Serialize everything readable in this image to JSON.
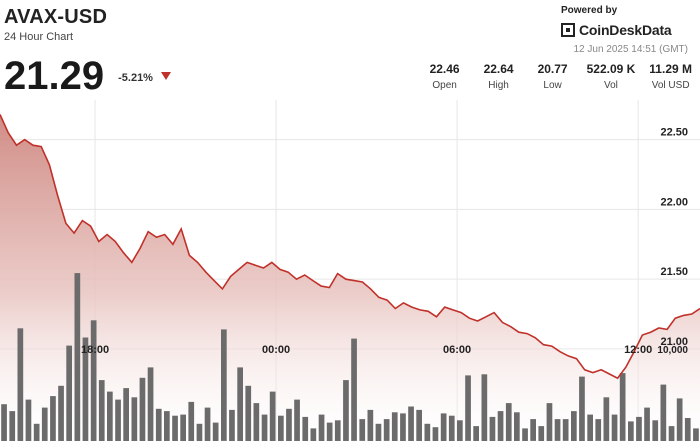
{
  "header": {
    "ticker": "AVAX-USD",
    "subtitle": "24 Hour Chart",
    "price": "21.29",
    "change": "-5.21%"
  },
  "brand": {
    "powered_by": "Powered by",
    "name": "CoinDeskData",
    "timestamp": "12 Jun 2025 14:51 (GMT)"
  },
  "stats": [
    {
      "value": "22.46",
      "label": "Open"
    },
    {
      "value": "22.64",
      "label": "High"
    },
    {
      "value": "20.77",
      "label": "Low"
    },
    {
      "value": "522.09 K",
      "label": "Vol"
    },
    {
      "value": "11.29 M",
      "label": "Vol USD"
    }
  ],
  "chart_data": {
    "type": "area",
    "x_tick_labels": [
      "18:00",
      "00:00",
      "06:00",
      "12:00"
    ],
    "x_tick_hours": [
      3.15,
      9.15,
      15.15,
      21.15
    ],
    "x_range_hours": [
      0,
      23.2
    ],
    "y_tick_labels": [
      "22.50",
      "22.00",
      "21.50",
      "21.00"
    ],
    "y_ticks": [
      22.5,
      22.0,
      21.5,
      21.0
    ],
    "ylim": [
      20.34,
      22.82
    ],
    "volume_tick_label": "10,000",
    "grid": true,
    "colors": {
      "line": "#c0312a",
      "area_top": "#d08a84",
      "volume": "#6b6b6b"
    },
    "price": [
      22.68,
      22.55,
      22.46,
      22.5,
      22.46,
      22.45,
      22.32,
      22.1,
      21.9,
      21.83,
      21.92,
      21.88,
      21.77,
      21.82,
      21.77,
      21.69,
      21.62,
      21.72,
      21.84,
      21.8,
      21.82,
      21.75,
      21.86,
      21.67,
      21.62,
      21.55,
      21.49,
      21.43,
      21.52,
      21.57,
      21.62,
      21.6,
      21.58,
      21.62,
      21.57,
      21.55,
      21.5,
      21.53,
      21.49,
      21.45,
      21.44,
      21.54,
      21.5,
      21.49,
      21.48,
      21.43,
      21.37,
      21.35,
      21.29,
      21.33,
      21.3,
      21.28,
      21.27,
      21.23,
      21.3,
      21.28,
      21.26,
      21.22,
      21.2,
      21.23,
      21.26,
      21.19,
      21.16,
      21.12,
      21.11,
      21.08,
      21.03,
      21.02,
      20.98,
      20.95,
      20.93,
      20.85,
      20.83,
      20.85,
      20.82,
      20.79,
      20.87,
      20.98,
      21.1,
      21.12,
      21.15,
      21.14,
      21.22,
      21.24,
      21.25,
      21.29
    ],
    "volume": [
      3200,
      2600,
      9800,
      3600,
      1500,
      2900,
      3900,
      4800,
      8300,
      14600,
      9000,
      10500,
      5300,
      4300,
      3600,
      4600,
      3800,
      5500,
      6400,
      2800,
      2600,
      2200,
      2300,
      3400,
      1500,
      2900,
      1600,
      9700,
      2700,
      6400,
      4800,
      3300,
      2300,
      4300,
      2200,
      2800,
      3600,
      2100,
      1100,
      2300,
      1600,
      1800,
      5300,
      8900,
      1900,
      2700,
      1500,
      1900,
      2500,
      2400,
      3000,
      2700,
      1500,
      1200,
      2400,
      2200,
      1800,
      5700,
      1300,
      5800,
      2100,
      2600,
      3300,
      2500,
      1100,
      1900,
      1300,
      3300,
      1900,
      1900,
      2600,
      5600,
      2300,
      1900,
      3800,
      2300,
      5900,
      1700,
      2100,
      2900,
      1800,
      4900,
      1300,
      3700,
      2000,
      1100
    ]
  }
}
